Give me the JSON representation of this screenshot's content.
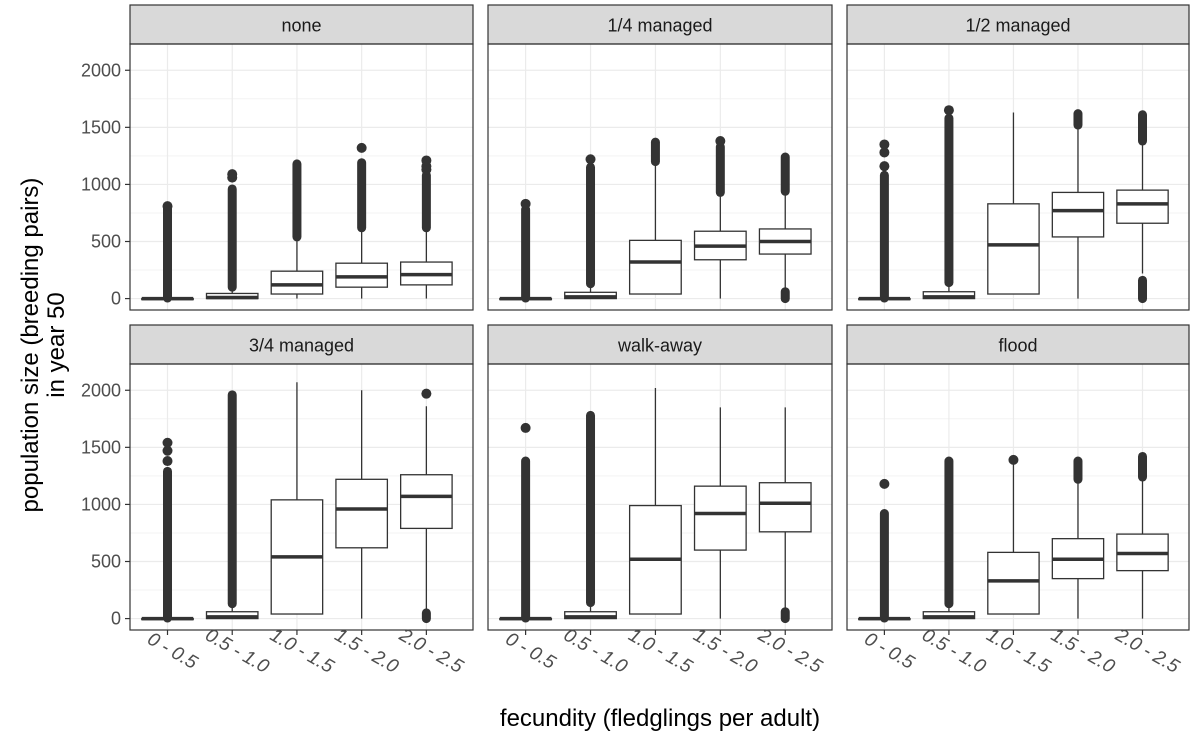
{
  "chart_data": {
    "type": "boxplot",
    "facet_layout": {
      "rows": 2,
      "cols": 3
    },
    "xlabel": "fecundity (fledglings per adult)",
    "ylabel_lines": [
      "population size (breeding pairs)",
      "in year 50"
    ],
    "categories": [
      "0 - 0.5",
      "0.5 - 1.0",
      "1.0 - 1.5",
      "1.5 - 2.0",
      "2.0 - 2.5"
    ],
    "ylim": [
      -100,
      2230
    ],
    "yticks": [
      0,
      500,
      1000,
      1500,
      2000
    ],
    "grid": true,
    "colors": {
      "strip_fill": "#d9d9d9",
      "box_stroke": "#333333",
      "grid": "#ebebeb",
      "panel_border": "#333333"
    },
    "panels": [
      {
        "name": "none",
        "boxes": [
          {
            "lower": 0,
            "q1": 0,
            "median": 0,
            "q3": 0,
            "upper": 0,
            "outliers_range": [
              5,
              800
            ],
            "outliers_max": 810
          },
          {
            "lower": 0,
            "q1": 0,
            "median": 10,
            "q3": 45,
            "upper": 100,
            "outliers_range": [
              100,
              960
            ],
            "outliers_top": [
              1060,
              1090
            ]
          },
          {
            "lower": 0,
            "q1": 40,
            "median": 120,
            "q3": 240,
            "upper": 540,
            "outliers_range": [
              540,
              1180
            ]
          },
          {
            "lower": 0,
            "q1": 100,
            "median": 190,
            "q3": 310,
            "upper": 620,
            "outliers_range": [
              620,
              1190
            ],
            "outliers_top": [
              1320
            ]
          },
          {
            "lower": 0,
            "q1": 120,
            "median": 210,
            "q3": 320,
            "upper": 620,
            "outliers_range": [
              620,
              1080
            ],
            "outliers_top": [
              1130,
              1160,
              1210
            ]
          }
        ]
      },
      {
        "name": "1/4 managed",
        "boxes": [
          {
            "lower": 0,
            "q1": 0,
            "median": 0,
            "q3": 0,
            "upper": 0,
            "outliers_range": [
              5,
              780
            ],
            "outliers_max": 830
          },
          {
            "lower": 0,
            "q1": 0,
            "median": 15,
            "q3": 55,
            "upper": 130,
            "outliers_range": [
              130,
              1150
            ],
            "outliers_top": [
              1220
            ]
          },
          {
            "lower": 40,
            "q1": 40,
            "median": 320,
            "q3": 510,
            "upper": 1200,
            "outliers_range": [
              1200,
              1370
            ]
          },
          {
            "lower": 0,
            "q1": 340,
            "median": 460,
            "q3": 590,
            "upper": 930,
            "outliers_range": [
              930,
              1330
            ],
            "outliers_top": [
              1380
            ]
          },
          {
            "lower": 60,
            "q1": 390,
            "median": 500,
            "q3": 610,
            "upper": 940,
            "outliers_range": [
              940,
              1240
            ],
            "outliers_low": [
              0,
              60
            ]
          }
        ]
      },
      {
        "name": "1/2 managed",
        "boxes": [
          {
            "lower": 0,
            "q1": 0,
            "median": 0,
            "q3": 0,
            "upper": 0,
            "outliers_range": [
              5,
              1080
            ],
            "outliers_top": [
              1160,
              1280,
              1350
            ]
          },
          {
            "lower": 0,
            "q1": 0,
            "median": 15,
            "q3": 60,
            "upper": 140,
            "outliers_range": [
              140,
              1580
            ],
            "outliers_top": [
              1650
            ]
          },
          {
            "lower": 40,
            "q1": 40,
            "median": 470,
            "q3": 830,
            "upper": 1630,
            "outliers_range": null
          },
          {
            "lower": 0,
            "q1": 540,
            "median": 770,
            "q3": 930,
            "upper": 1520,
            "outliers_range": [
              1520,
              1620
            ]
          },
          {
            "lower": 220,
            "q1": 660,
            "median": 830,
            "q3": 950,
            "upper": 1380,
            "outliers_range": [
              1380,
              1610
            ],
            "outliers_low": [
              0,
              160
            ]
          }
        ]
      },
      {
        "name": "3/4 managed",
        "boxes": [
          {
            "lower": 0,
            "q1": 0,
            "median": 0,
            "q3": 0,
            "upper": 0,
            "outliers_range": [
              5,
              1290
            ],
            "outliers_top": [
              1380,
              1470,
              1540
            ]
          },
          {
            "lower": 0,
            "q1": 0,
            "median": 15,
            "q3": 60,
            "upper": 130,
            "outliers_range": [
              130,
              1960
            ]
          },
          {
            "lower": 40,
            "q1": 40,
            "median": 540,
            "q3": 1040,
            "upper": 2070,
            "outliers_range": null
          },
          {
            "lower": 0,
            "q1": 620,
            "median": 960,
            "q3": 1220,
            "upper": 2000,
            "outliers_range": null
          },
          {
            "lower": 80,
            "q1": 790,
            "median": 1070,
            "q3": 1260,
            "upper": 1860,
            "outliers_range": null,
            "outliers_top": [
              1970
            ],
            "outliers_low": [
              0,
              50
            ]
          }
        ]
      },
      {
        "name": "walk-away",
        "boxes": [
          {
            "lower": 0,
            "q1": 0,
            "median": 0,
            "q3": 0,
            "upper": 0,
            "outliers_range": [
              5,
              1380
            ],
            "outliers_top": [
              1670
            ]
          },
          {
            "lower": 0,
            "q1": 0,
            "median": 15,
            "q3": 60,
            "upper": 140,
            "outliers_range": [
              140,
              1780
            ]
          },
          {
            "lower": 40,
            "q1": 40,
            "median": 520,
            "q3": 990,
            "upper": 2020,
            "outliers_range": null
          },
          {
            "lower": 0,
            "q1": 600,
            "median": 920,
            "q3": 1160,
            "upper": 1850,
            "outliers_range": null
          },
          {
            "lower": 80,
            "q1": 760,
            "median": 1010,
            "q3": 1190,
            "upper": 1850,
            "outliers_range": null,
            "outliers_low": [
              0,
              60
            ]
          }
        ]
      },
      {
        "name": "flood",
        "boxes": [
          {
            "lower": 0,
            "q1": 0,
            "median": 0,
            "q3": 0,
            "upper": 0,
            "outliers_range": [
              5,
              920
            ],
            "outliers_top": [
              1180
            ]
          },
          {
            "lower": 0,
            "q1": 0,
            "median": 15,
            "q3": 60,
            "upper": 130,
            "outliers_range": [
              130,
              1380
            ]
          },
          {
            "lower": 40,
            "q1": 40,
            "median": 330,
            "q3": 580,
            "upper": 1390,
            "outliers_range": null,
            "outliers_top": [
              1390
            ]
          },
          {
            "lower": 0,
            "q1": 350,
            "median": 520,
            "q3": 700,
            "upper": 1220,
            "outliers_range": [
              1220,
              1380
            ]
          },
          {
            "lower": 0,
            "q1": 420,
            "median": 570,
            "q3": 740,
            "upper": 1240,
            "outliers_range": [
              1240,
              1420
            ]
          }
        ]
      }
    ]
  }
}
